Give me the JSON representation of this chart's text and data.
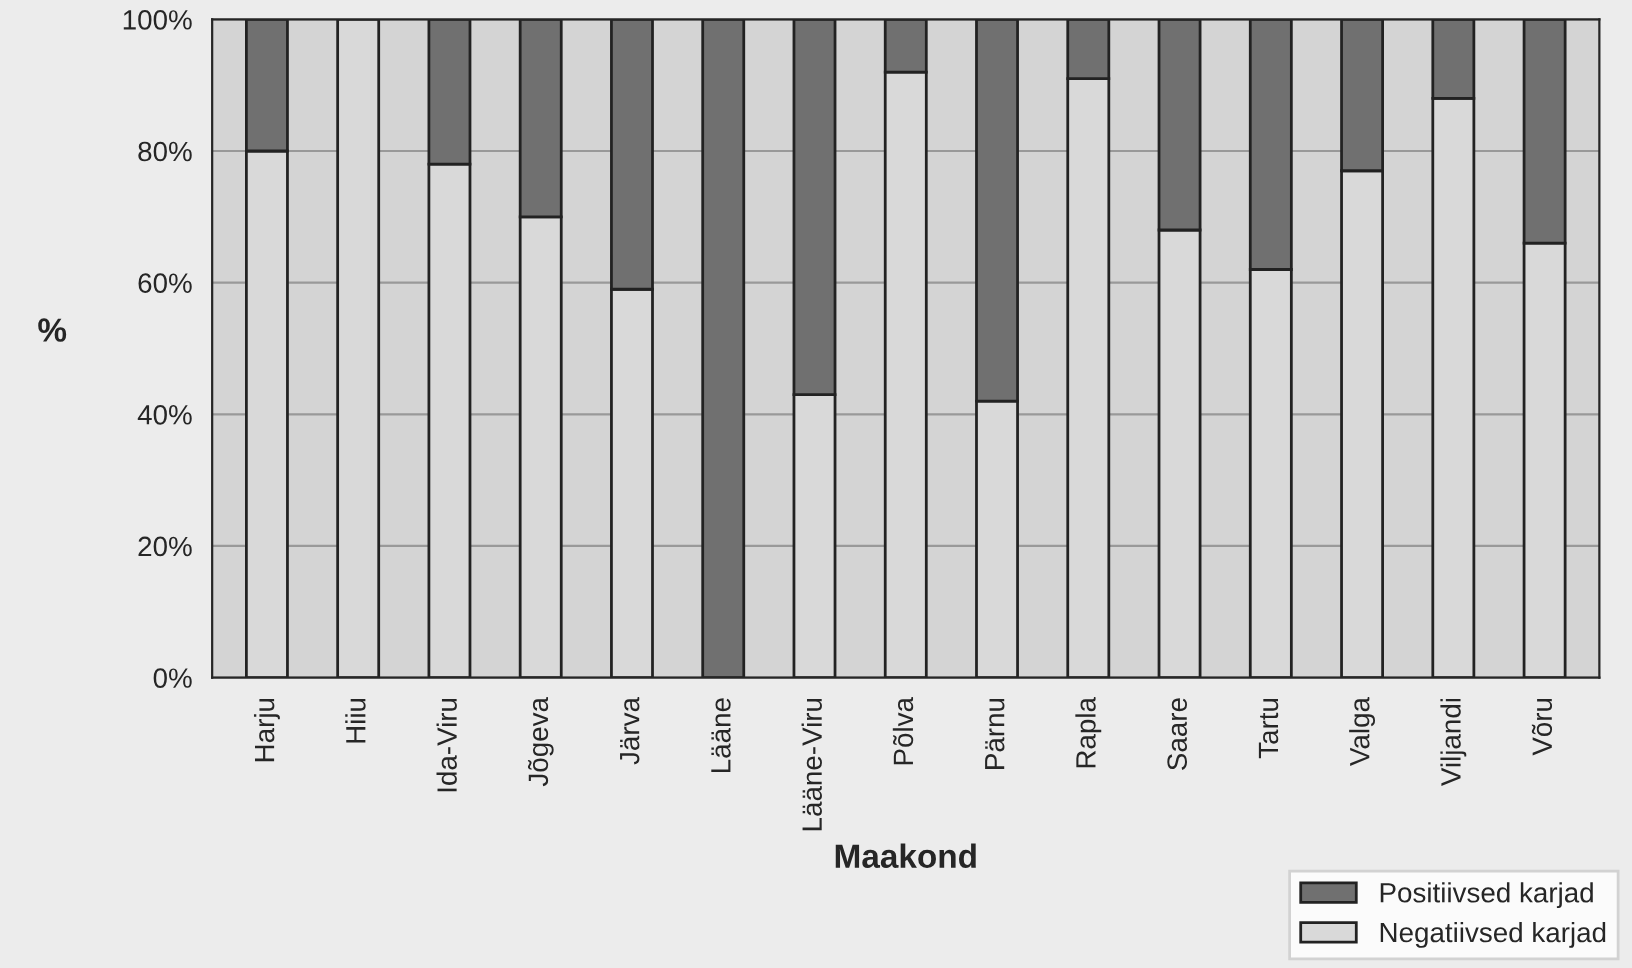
{
  "chart_data": {
    "type": "bar",
    "stacked": true,
    "xlabel": "Maakond",
    "ylabel": "%",
    "categories": [
      "Harju",
      "Hiiu",
      "Ida-Viru",
      "Jõgeva",
      "Järva",
      "Lääne",
      "Lääne-Viru",
      "Põlva",
      "Pärnu",
      "Rapla",
      "Saare",
      "Tartu",
      "Valga",
      "Viljandi",
      "Võru"
    ],
    "series": [
      {
        "name": "Negatiivsed karjad",
        "color": "#d9d9d9",
        "values": [
          80,
          100,
          78,
          70,
          59,
          0,
          43,
          92,
          42,
          91,
          68,
          62,
          77,
          88,
          66
        ]
      },
      {
        "name": "Positiivsed karjad",
        "color": "#707070",
        "values": [
          20,
          0,
          22,
          30,
          41,
          100,
          57,
          8,
          58,
          9,
          32,
          38,
          23,
          12,
          34
        ]
      }
    ],
    "ylim": [
      0,
      100
    ],
    "yticks": [
      {
        "value": 0,
        "label": "0%"
      },
      {
        "value": 20,
        "label": "20%"
      },
      {
        "value": 40,
        "label": "40%"
      },
      {
        "value": 60,
        "label": "60%"
      },
      {
        "value": 80,
        "label": "80%"
      },
      {
        "value": 100,
        "label": "100%"
      }
    ],
    "grid": "y",
    "legend": "bottom right"
  }
}
